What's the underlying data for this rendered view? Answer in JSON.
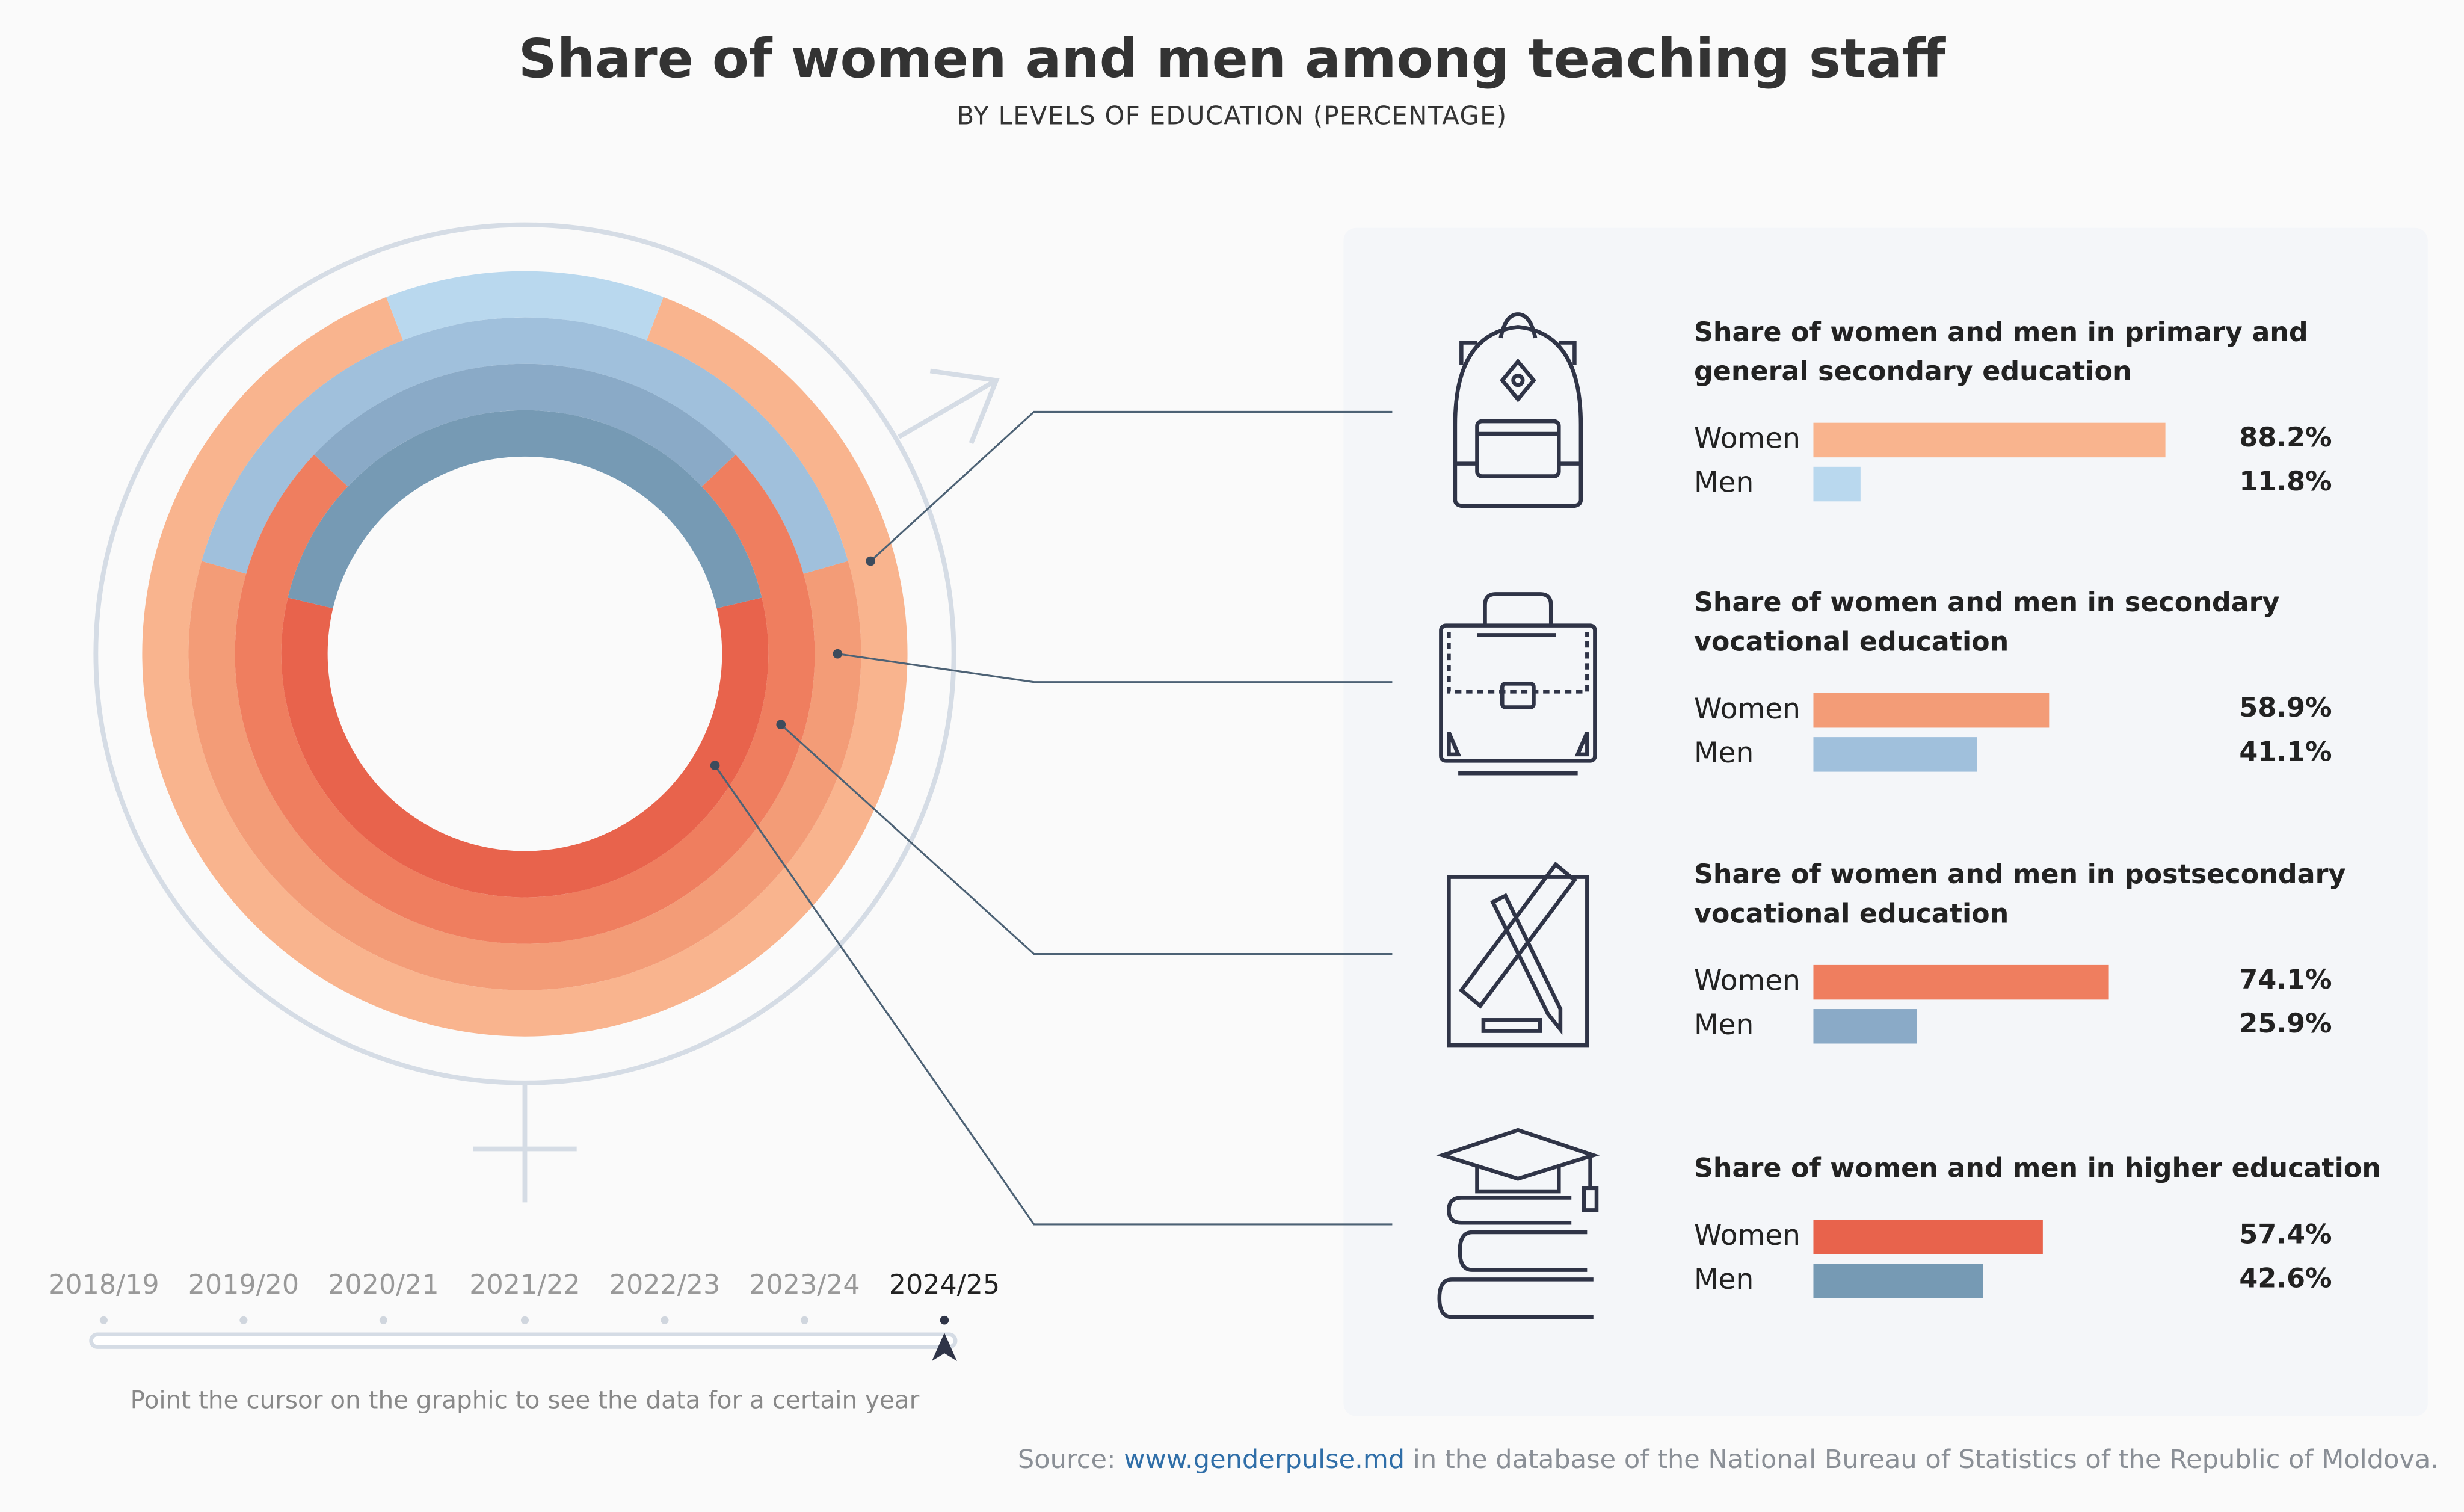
{
  "title": "Share of women and men among teaching staff",
  "subtitle": "BY LEVELS OF EDUCATION (PERCENTAGE)",
  "chart_data": {
    "type": "donut-rings",
    "year": "2024/25",
    "series_labels": [
      "Women",
      "Men"
    ],
    "categories": [
      {
        "title": "Share of women and men in primary and general secondary education",
        "women": 88.2,
        "men": 11.8,
        "women_label": "88.2%",
        "men_label": "11.8%",
        "women_color": "#f9b48e",
        "men_color": "#b9d8ee",
        "icon": "backpack-icon"
      },
      {
        "title": "Share of women and men in secondary vocational education",
        "women": 58.9,
        "men": 41.1,
        "women_label": "58.9%",
        "men_label": "41.1%",
        "women_color": "#f39c77",
        "men_color": "#a0c0dc",
        "icon": "briefcase-icon"
      },
      {
        "title": "Share of women and men in postsecondary vocational education",
        "women": 74.1,
        "men": 25.9,
        "women_label": "74.1%",
        "men_label": "25.9%",
        "women_color": "#ef7e5f",
        "men_color": "#8aaac7",
        "icon": "ruler-pencil-icon"
      },
      {
        "title": "Share of women and men in higher education",
        "women": 57.4,
        "men": 42.6,
        "women_label": "57.4%",
        "men_label": "42.6%",
        "women_color": "#e8634c",
        "men_color": "#769ab4",
        "icon": "graduation-books-icon"
      }
    ]
  },
  "timeline": {
    "years": [
      "2018/19",
      "2019/20",
      "2020/21",
      "2021/22",
      "2022/23",
      "2023/24",
      "2024/25"
    ],
    "selected": "2024/25",
    "hint": "Point the cursor on the graphic to see the data for a certain year"
  },
  "source": {
    "prefix": "Source: ",
    "link": "www.genderpulse.md",
    "suffix": " in the database of the National Bureau of Statistics of the Republic of Moldova."
  }
}
